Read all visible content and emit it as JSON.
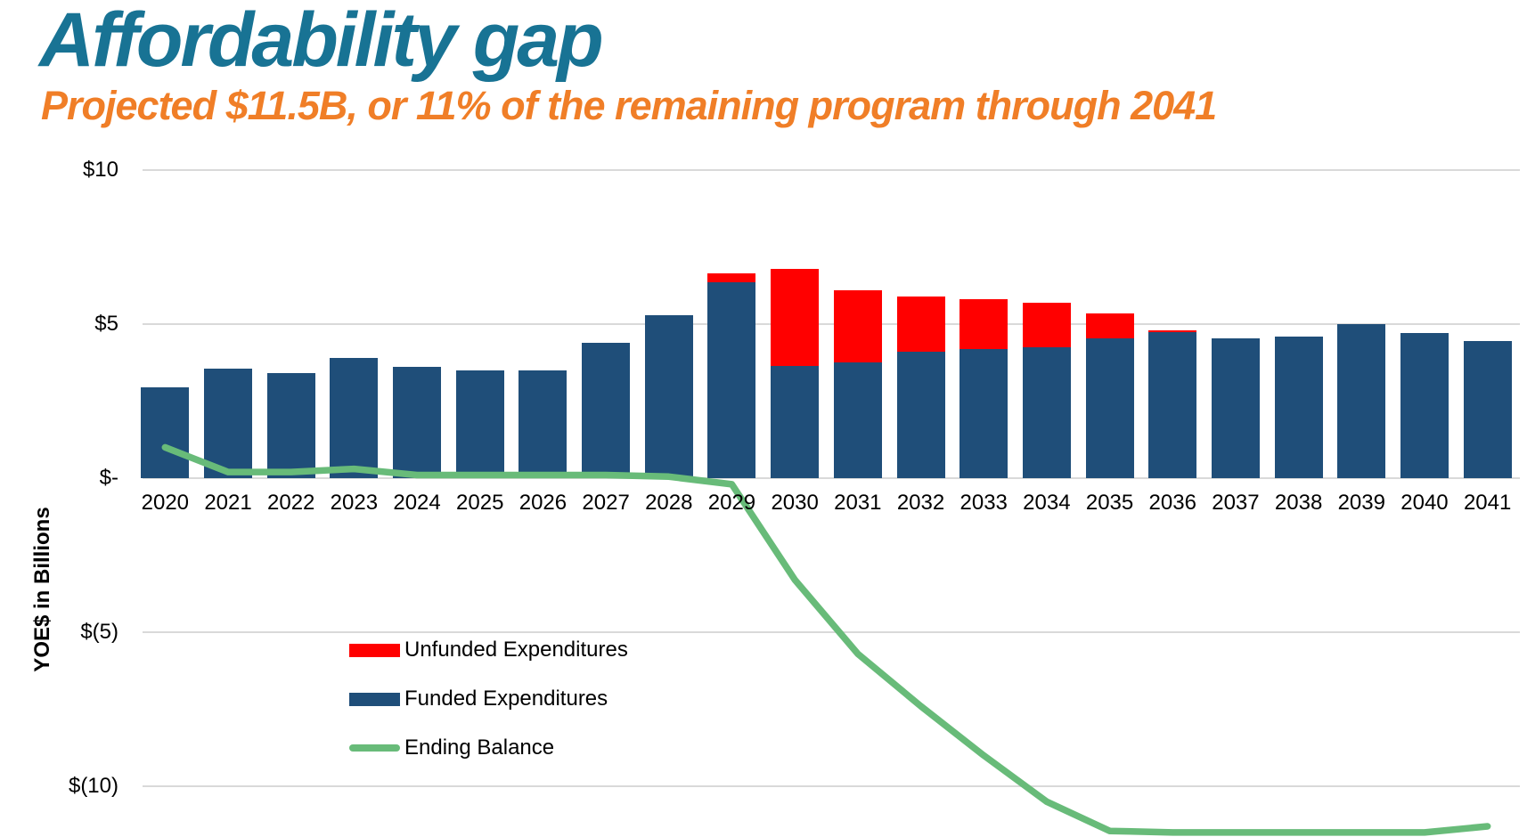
{
  "slide": {
    "title": "Affordability gap",
    "subtitle": "Projected $11.5B, or 11% of the remaining program through 2041"
  },
  "colors": {
    "title_text": "#187394",
    "subtitle_text": "#F07E27",
    "funded_bar": "#1F4E79",
    "unfunded_bar": "#FF0000",
    "ending_balance_line": "#68BB79",
    "gridline": "#D9D9D9",
    "axis_text": "#000000",
    "background": "#FFFFFF"
  },
  "y_axis": {
    "title": "YOE$ in Billions",
    "ticks": [
      {
        "label": "$10",
        "value": 10
      },
      {
        "label": "$5",
        "value": 5
      },
      {
        "label": "$-",
        "value": 0
      },
      {
        "label": "$(5)",
        "value": -5
      },
      {
        "label": "$(10)",
        "value": -10
      }
    ]
  },
  "legend": {
    "items": [
      {
        "label": "Unfunded Expenditures",
        "swatch": "box",
        "color": "#FF0000"
      },
      {
        "label": "Funded Expenditures",
        "swatch": "box",
        "color": "#1F4E79"
      },
      {
        "label": "Ending Balance",
        "swatch": "line",
        "color": "#68BB79"
      }
    ]
  },
  "chart_data": {
    "type": "bar",
    "subtype": "stacked-bars-with-line-overlay",
    "title": "Affordability gap",
    "subtitle": "Projected $11.5B, or 11% of the remaining program through 2041",
    "xlabel": "",
    "ylabel": "YOE$ in Billions",
    "units": "YOE$ billions",
    "ylim_visible": [
      -11.7,
      10.3
    ],
    "grid": true,
    "gridline_values": [
      10,
      5,
      0,
      -5,
      -10
    ],
    "legend_position": "inside-left-middle",
    "categories": [
      "2020",
      "2021",
      "2022",
      "2023",
      "2024",
      "2025",
      "2026",
      "2027",
      "2028",
      "2029",
      "2030",
      "2031",
      "2032",
      "2033",
      "2034",
      "2035",
      "2036",
      "2037",
      "2038",
      "2039",
      "2040",
      "2041"
    ],
    "series": [
      {
        "name": "Funded Expenditures",
        "type": "bar",
        "stack": "expenditures",
        "color": "#1F4E79",
        "values": [
          2.95,
          3.55,
          3.4,
          3.9,
          3.6,
          3.5,
          3.5,
          4.4,
          5.3,
          6.35,
          3.65,
          3.75,
          4.1,
          4.2,
          4.25,
          4.55,
          4.75,
          4.55,
          4.6,
          5.0,
          4.7,
          4.45
        ]
      },
      {
        "name": "Unfunded Expenditures",
        "type": "bar",
        "stack": "expenditures",
        "color": "#FF0000",
        "values": [
          0,
          0,
          0,
          0,
          0,
          0,
          0,
          0,
          0,
          0.3,
          3.15,
          2.35,
          1.8,
          1.6,
          1.45,
          0.8,
          0.05,
          0,
          0,
          0,
          0,
          0
        ]
      },
      {
        "name": "Ending Balance",
        "type": "line",
        "color": "#68BB79",
        "values": [
          1.0,
          0.2,
          0.2,
          0.3,
          0.1,
          0.1,
          0.1,
          0.1,
          0.05,
          -0.2,
          -3.3,
          -5.7,
          -7.4,
          -9.0,
          -10.5,
          -11.45,
          -11.5,
          -11.5,
          -11.5,
          -11.5,
          -11.5,
          -11.3
        ]
      }
    ]
  }
}
